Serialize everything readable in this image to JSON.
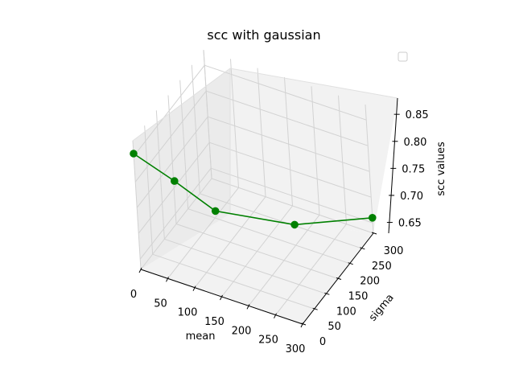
{
  "chart_data": {
    "type": "line3d",
    "title": "scc with gaussian",
    "xlabel": "mean",
    "ylabel": "sigma",
    "zlabel": "scc values",
    "x_ticks": [
      "0",
      "50",
      "100",
      "150",
      "200",
      "250",
      "300"
    ],
    "y_ticks": [
      "0",
      "50",
      "100",
      "150",
      "200",
      "250",
      "300"
    ],
    "z_ticks": [
      "0.65",
      "0.70",
      "0.75",
      "0.80",
      "0.85"
    ],
    "xlim": [
      0,
      300
    ],
    "ylim": [
      0,
      300
    ],
    "zlim": [
      0.63,
      0.88
    ],
    "grid": true,
    "legend": {
      "placement": "top-right",
      "entries": []
    },
    "series": [
      {
        "color": "#008000",
        "marker": "circle",
        "points": [
          {
            "x": 0,
            "y": 0,
            "z": 0.855
          },
          {
            "x": 50,
            "y": 50,
            "z": 0.79
          },
          {
            "x": 100,
            "y": 100,
            "z": 0.72
          },
          {
            "x": 200,
            "y": 200,
            "z": 0.67
          },
          {
            "x": 300,
            "y": 300,
            "z": 0.66
          }
        ]
      }
    ]
  }
}
